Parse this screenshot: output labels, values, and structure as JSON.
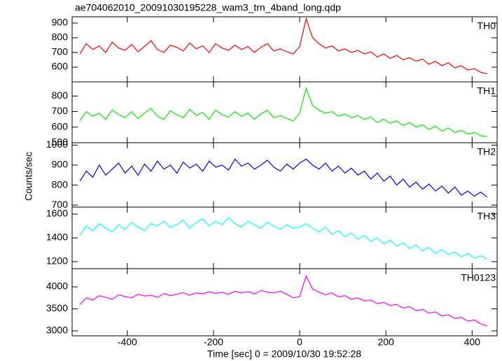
{
  "chart_data": {
    "type": "line",
    "title": "ae704062010_20091030195228_wam3_trn_4band_long.qdp",
    "y_label": "Counts/sec",
    "x_label": "Time [sec] 0 = 2009/10/30 19:52:28",
    "xlim": [
      -528,
      458
    ],
    "xticks": [
      -400,
      -200,
      0,
      200,
      400
    ],
    "x": [
      -510,
      -495,
      -480,
      -465,
      -450,
      -435,
      -420,
      -405,
      -390,
      -375,
      -360,
      -345,
      -330,
      -315,
      -300,
      -285,
      -270,
      -255,
      -240,
      -225,
      -210,
      -195,
      -180,
      -165,
      -150,
      -135,
      -120,
      -105,
      -90,
      -75,
      -60,
      -45,
      -30,
      -15,
      0,
      15,
      30,
      45,
      60,
      75,
      90,
      105,
      120,
      135,
      150,
      165,
      180,
      195,
      210,
      225,
      240,
      255,
      270,
      285,
      300,
      315,
      330,
      345,
      360,
      375,
      390,
      405,
      420,
      435
    ],
    "series": [
      {
        "name": "TH0",
        "color": "#ff0000",
        "ylim": [
          500,
          943
        ],
        "yticks": [
          600,
          700,
          800,
          900
        ],
        "values": [
          690,
          760,
          720,
          745,
          700,
          770,
          730,
          715,
          755,
          705,
          740,
          780,
          720,
          700,
          750,
          735,
          710,
          765,
          725,
          745,
          700,
          760,
          730,
          715,
          750,
          720,
          740,
          700,
          735,
          760,
          710,
          725,
          705,
          690,
          740,
          930,
          800,
          760,
          730,
          745,
          710,
          725,
          700,
          715,
          690,
          705,
          670,
          690,
          660,
          680,
          650,
          665,
          640,
          655,
          620,
          640,
          610,
          630,
          595,
          610,
          580,
          590,
          565,
          555
        ]
      },
      {
        "name": "TH1",
        "color": "#00ee00",
        "ylim": [
          500,
          891
        ],
        "yticks": [
          500,
          600,
          700,
          800
        ],
        "values": [
          640,
          700,
          670,
          690,
          650,
          710,
          680,
          660,
          700,
          655,
          690,
          720,
          670,
          650,
          705,
          680,
          660,
          715,
          675,
          695,
          650,
          710,
          680,
          665,
          700,
          670,
          690,
          650,
          685,
          710,
          660,
          675,
          655,
          640,
          690,
          850,
          740,
          710,
          690,
          700,
          670,
          685,
          660,
          675,
          650,
          665,
          630,
          650,
          625,
          640,
          610,
          630,
          600,
          615,
          585,
          605,
          575,
          595,
          565,
          580,
          555,
          565,
          545,
          540
        ]
      },
      {
        "name": "TH2",
        "color": "#0000ff",
        "ylim": [
          690,
          1012
        ],
        "yticks": [
          700,
          800,
          900,
          1000
        ],
        "values": [
          820,
          870,
          840,
          900,
          850,
          880,
          910,
          860,
          895,
          850,
          905,
          870,
          920,
          880,
          900,
          860,
          915,
          885,
          905,
          870,
          920,
          890,
          900,
          875,
          930,
          895,
          910,
          880,
          900,
          925,
          890,
          870,
          905,
          880,
          910,
          930,
          900,
          880,
          910,
          870,
          895,
          860,
          885,
          850,
          870,
          830,
          860,
          820,
          845,
          800,
          830,
          790,
          815,
          780,
          805,
          770,
          795,
          760,
          790,
          750,
          770,
          745,
          765,
          740
        ]
      },
      {
        "name": "TH3",
        "color": "#00ffff",
        "ylim": [
          1141,
          1659
        ],
        "yticks": [
          1200,
          1400,
          1600
        ],
        "values": [
          1420,
          1500,
          1460,
          1520,
          1480,
          1450,
          1510,
          1470,
          1530,
          1490,
          1460,
          1520,
          1500,
          1540,
          1490,
          1510,
          1550,
          1480,
          1530,
          1560,
          1500,
          1540,
          1510,
          1570,
          1520,
          1490,
          1540,
          1510,
          1480,
          1530,
          1500,
          1470,
          1510,
          1480,
          1490,
          1520,
          1480,
          1450,
          1490,
          1430,
          1460,
          1410,
          1440,
          1390,
          1420,
          1370,
          1400,
          1350,
          1380,
          1330,
          1360,
          1310,
          1340,
          1290,
          1320,
          1270,
          1300,
          1260,
          1280,
          1240,
          1270,
          1230,
          1250,
          1220
        ]
      },
      {
        "name": "TH0123",
        "color": "#ff00ff",
        "ylim": [
          2889,
          4413
        ],
        "yticks": [
          3000,
          3500,
          4000
        ],
        "values": [
          3600,
          3750,
          3700,
          3800,
          3760,
          3720,
          3820,
          3780,
          3750,
          3830,
          3790,
          3810,
          3760,
          3850,
          3800,
          3830,
          3870,
          3810,
          3860,
          3840,
          3890,
          3850,
          3880,
          3830,
          3900,
          3860,
          3890,
          3840,
          3920,
          3880,
          3860,
          3900,
          3830,
          3750,
          3780,
          4250,
          3950,
          3880,
          3820,
          3860,
          3770,
          3800,
          3720,
          3750,
          3680,
          3700,
          3620,
          3650,
          3580,
          3600,
          3520,
          3550,
          3460,
          3490,
          3400,
          3430,
          3340,
          3370,
          3280,
          3310,
          3220,
          3250,
          3160,
          3110
        ]
      }
    ]
  }
}
